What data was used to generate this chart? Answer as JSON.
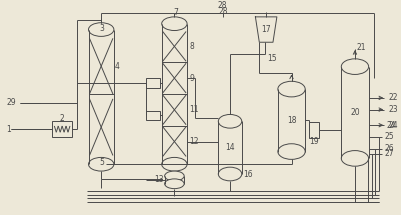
{
  "bg_color": "#ede8d8",
  "line_color": "#4a4a4a",
  "lw": 0.7,
  "fig_w": 4.02,
  "fig_h": 2.15
}
